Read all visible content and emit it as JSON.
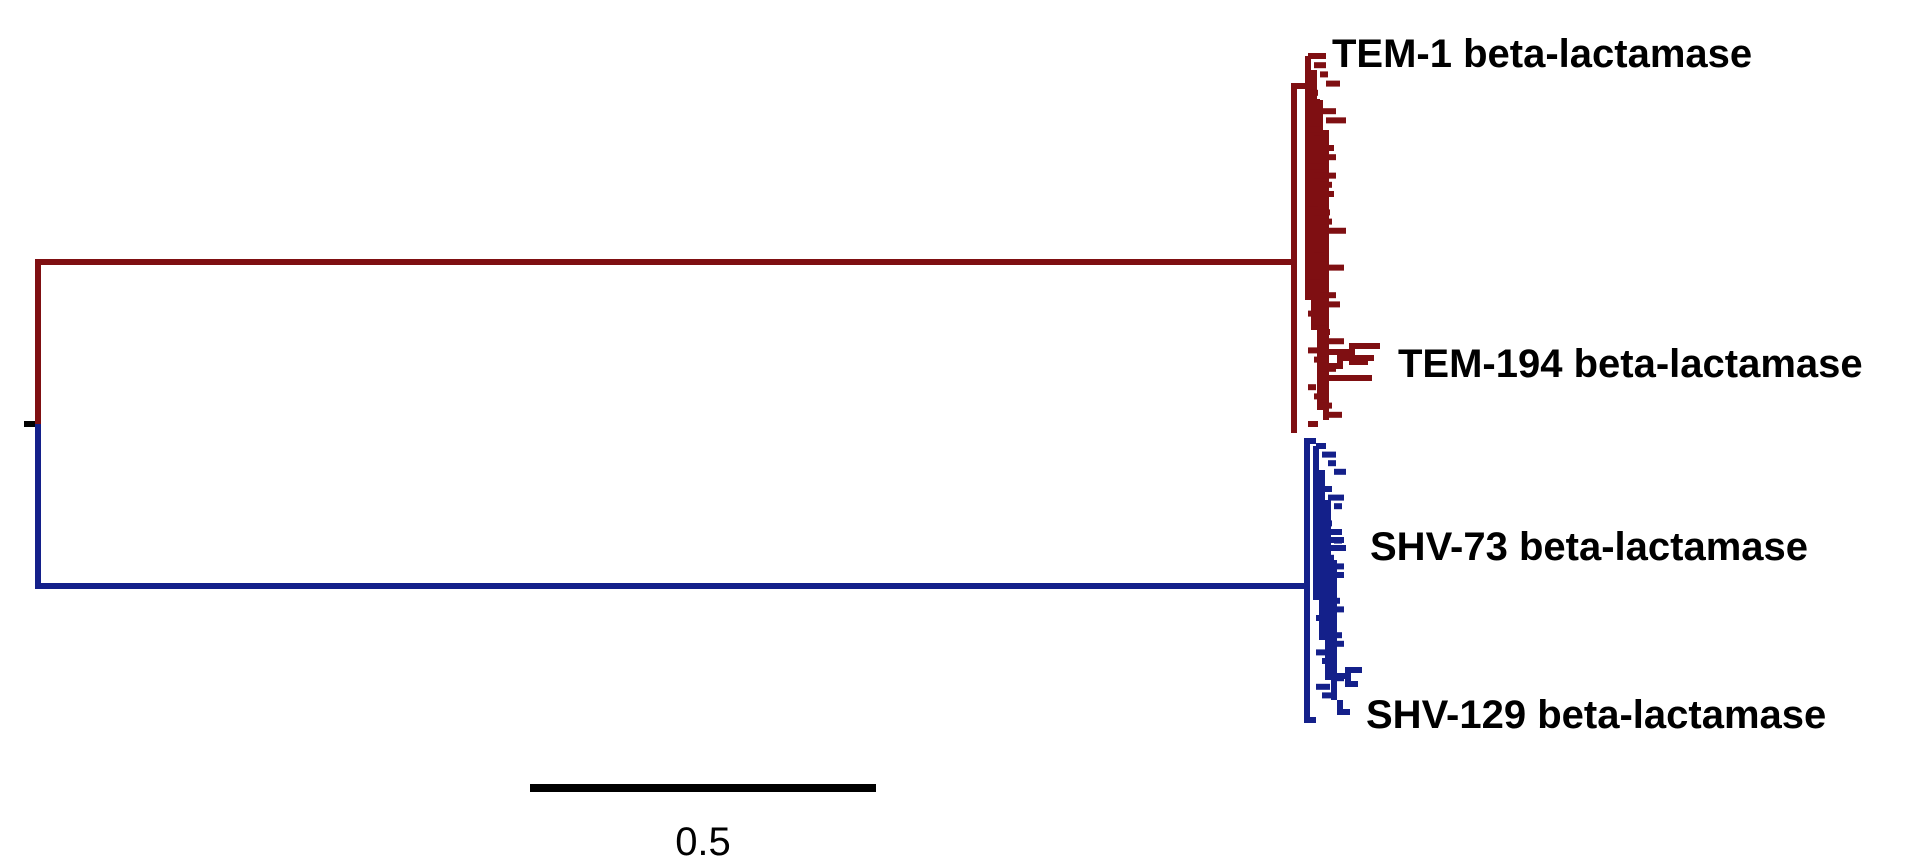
{
  "tree": {
    "root_color": "#000000",
    "clades": [
      {
        "name": "TEM",
        "color": "#7F0F12",
        "labels": [
          "TEM-1 beta-lactamase",
          "TEM-194 beta-lactamase"
        ]
      },
      {
        "name": "SHV",
        "color": "#14208A",
        "labels": [
          "SHV-73 beta-lactamase",
          "SHV-129 beta-lactamase"
        ]
      }
    ]
  },
  "scale_bar": {
    "value": 0.5,
    "label": "0.5",
    "color": "#000000"
  }
}
